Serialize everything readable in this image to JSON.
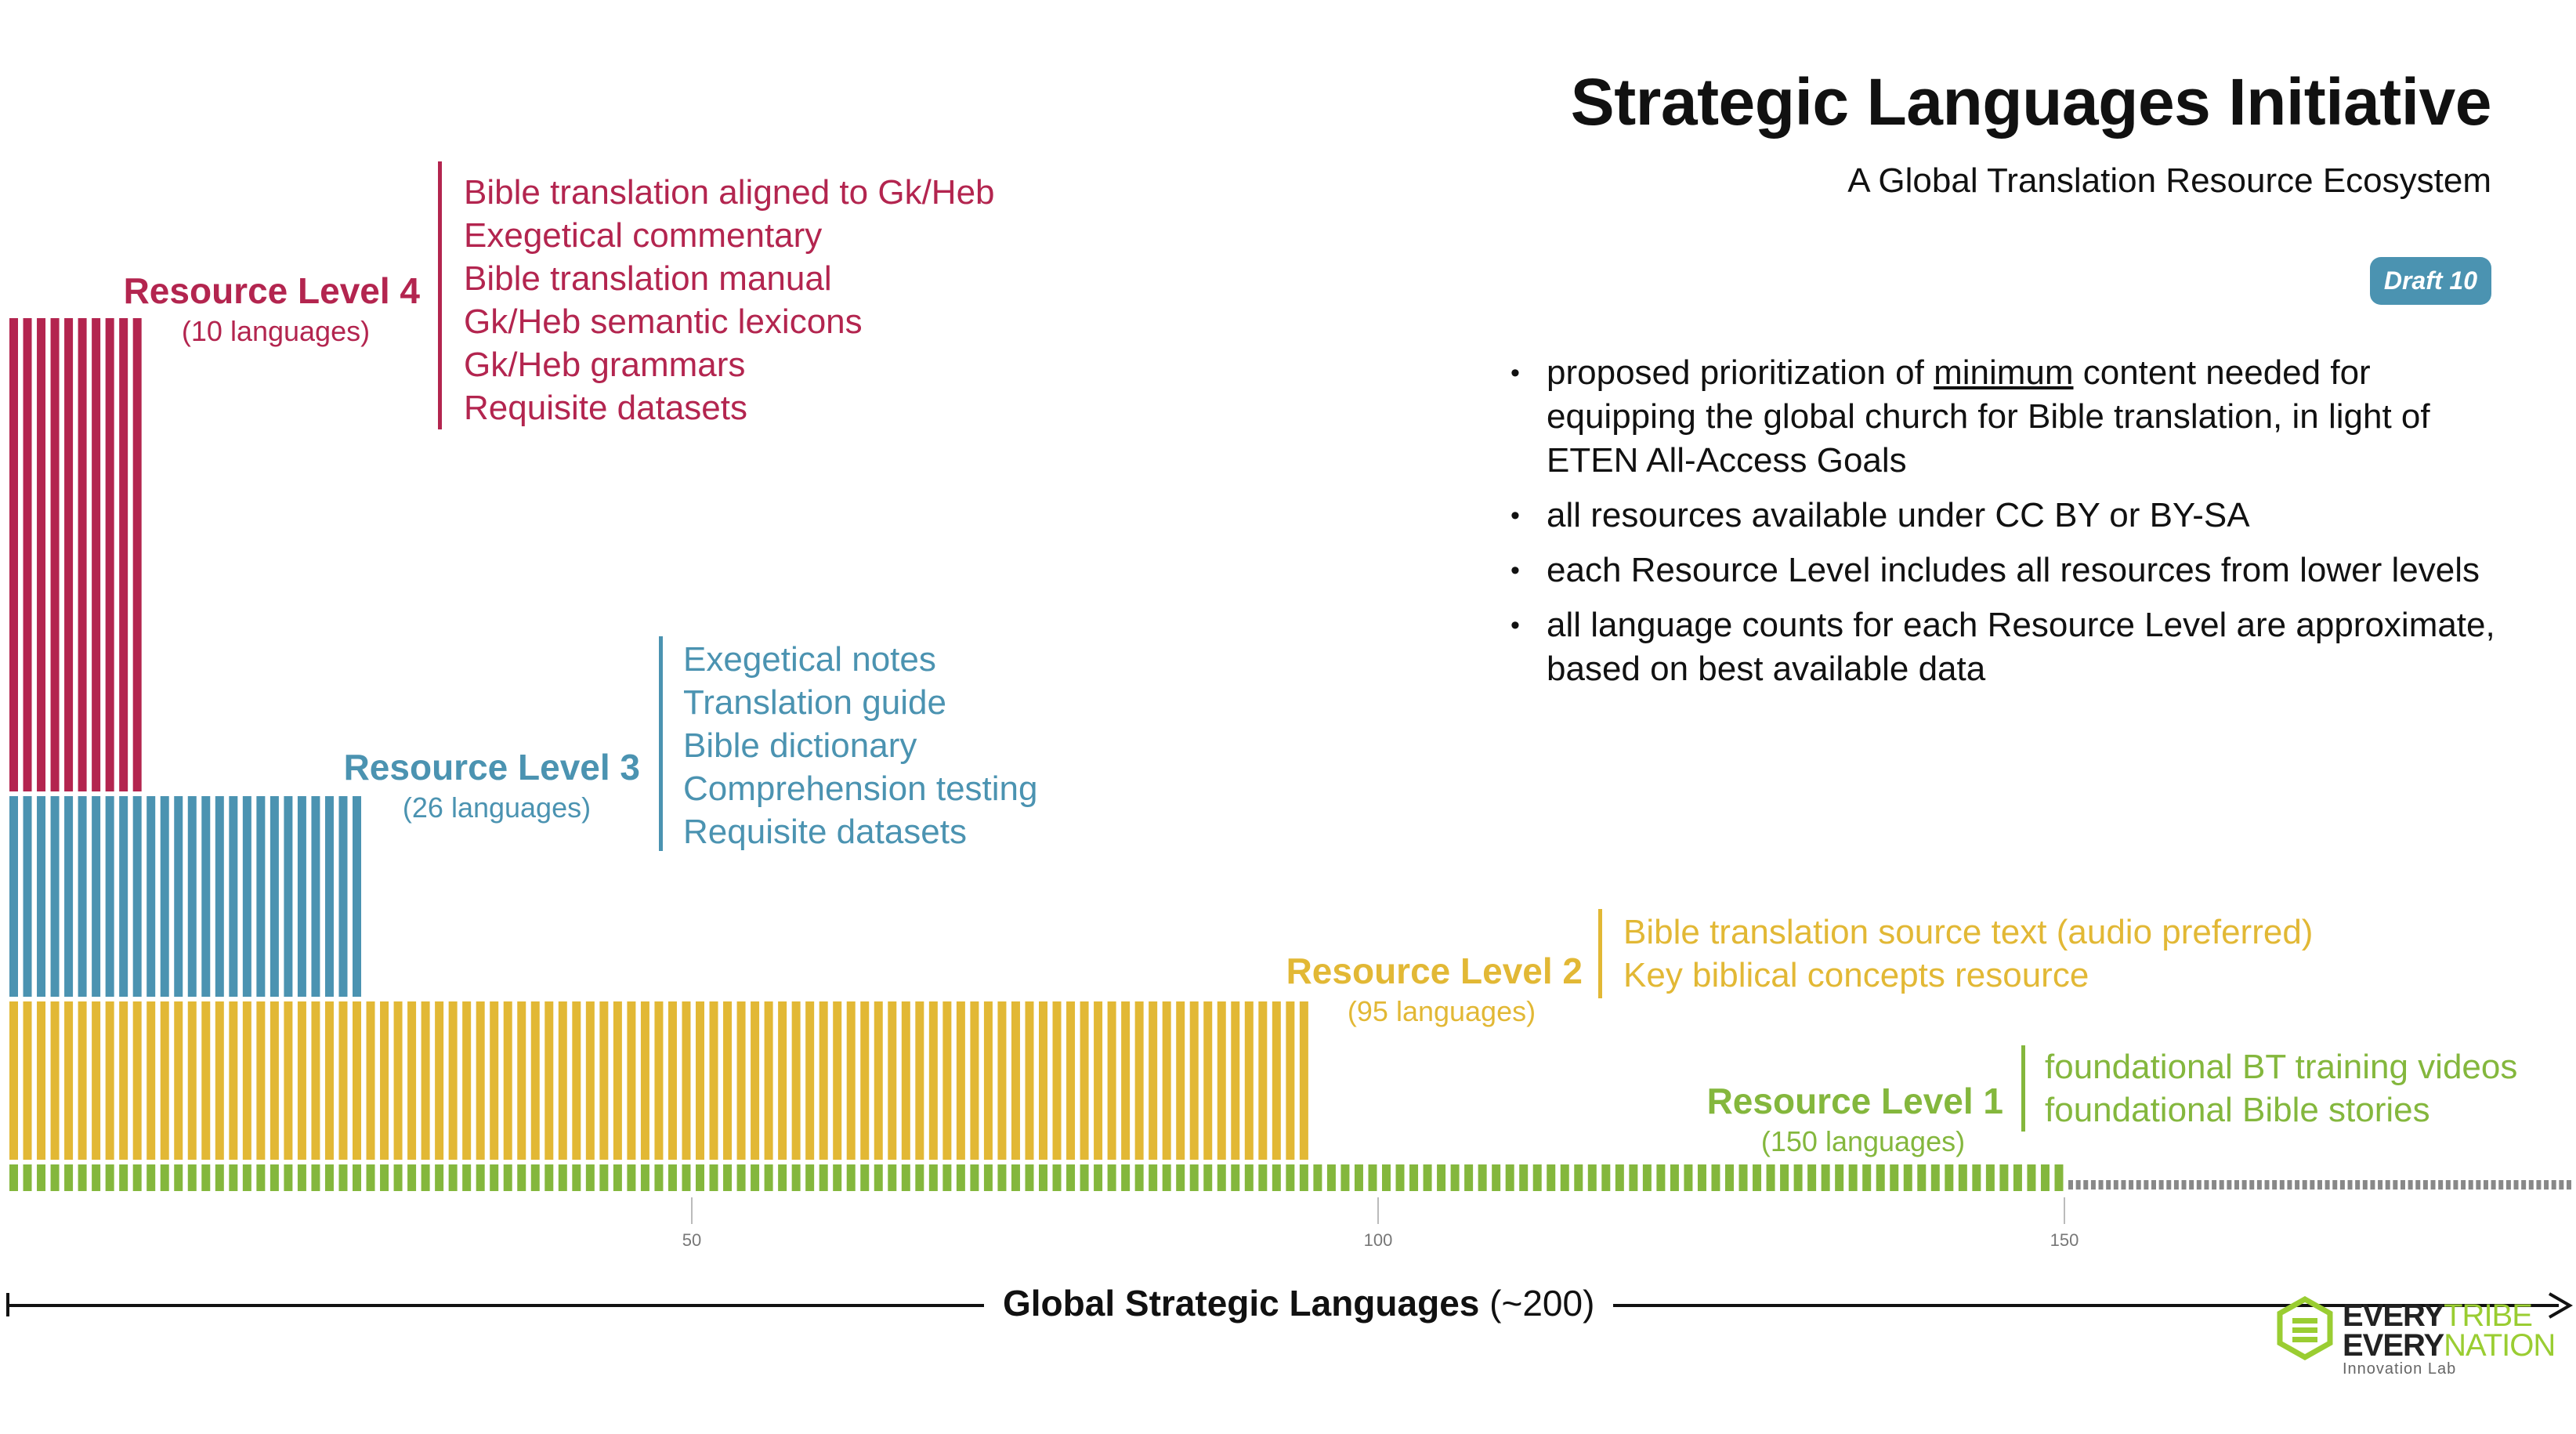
{
  "header": {
    "title": "Strategic Languages Initiative",
    "subtitle": "A Global Translation Resource Ecosystem",
    "draft_badge": "Draft 10"
  },
  "notes": {
    "bullet_glyph": "•",
    "items": [
      {
        "before": "proposed prioritization of ",
        "underlined": "minimum",
        "after": " content needed for equipping the global church for Bible translation, in light of ETEN All-Access Goals"
      },
      {
        "before": "all resources available under CC BY or BY-SA",
        "underlined": "",
        "after": ""
      },
      {
        "before": "each Resource Level includes all resources from lower levels",
        "underlined": "",
        "after": ""
      },
      {
        "before": "all language counts for each Resource Level are approximate, based on best available data",
        "underlined": "",
        "after": ""
      }
    ]
  },
  "levels": [
    {
      "name": "Resource Level 4",
      "count_label": "(10 languages)",
      "languages": 10,
      "color": "#b3254f",
      "resources": [
        "Bible translation aligned to Gk/Heb",
        "Exegetical commentary",
        "Bible translation manual",
        "Gk/Heb semantic lexicons",
        "Gk/Heb grammars",
        "Requisite datasets"
      ]
    },
    {
      "name": "Resource Level 3",
      "count_label": "(26 languages)",
      "languages": 26,
      "color": "#4b93b1",
      "resources": [
        "Exegetical notes",
        "Translation guide",
        "Bible dictionary",
        "Comprehension testing",
        "Requisite datasets"
      ]
    },
    {
      "name": "Resource Level 2",
      "count_label": "(95 languages)",
      "languages": 95,
      "color": "#e2b835",
      "resources": [
        "Bible translation source text (audio preferred)",
        "Key biblical concepts resource"
      ]
    },
    {
      "name": "Resource Level 1",
      "count_label": "(150 languages)",
      "languages": 150,
      "color": "#84b73d",
      "resources": [
        "foundational BT training videos",
        "foundational Bible stories"
      ]
    }
  ],
  "chart_data": {
    "type": "bar",
    "x_ticks": [
      50,
      100,
      150
    ],
    "x_total_estimate": 200,
    "series": [
      {
        "name": "Resource Level 4",
        "value": 10
      },
      {
        "name": "Resource Level 3",
        "value": 26
      },
      {
        "name": "Resource Level 2",
        "value": 95
      },
      {
        "name": "Resource Level 1",
        "value": 150
      }
    ],
    "remaining_color": "#888888"
  },
  "axis": {
    "label_bold": "Global Strategic Languages",
    "label_rest": " (~200)"
  },
  "logo": {
    "every1": "EVERY",
    "tribe": "TRIBE",
    "every2": "EVERY",
    "nation": "NATION",
    "sub": "Innovation Lab",
    "dark": "#222222",
    "accent": "#9acd32"
  }
}
